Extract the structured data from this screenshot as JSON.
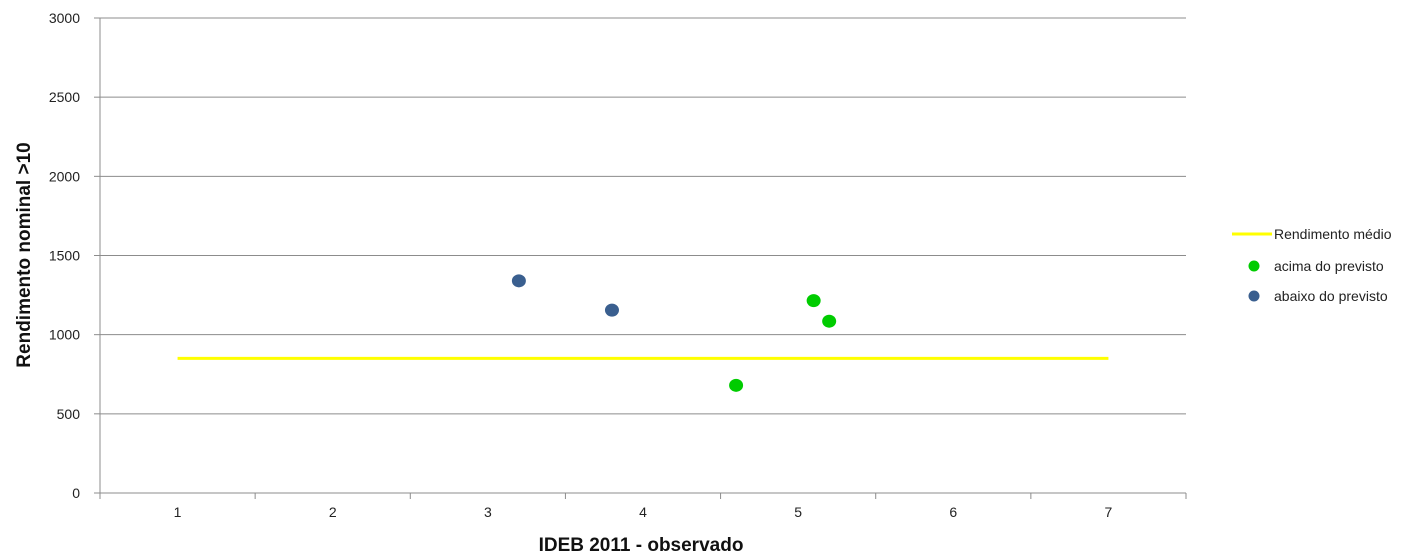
{
  "chart_data": {
    "type": "scatter",
    "title": "",
    "xlabel": "IDEB 2011 - observado",
    "ylabel": "Rendimento nominal >10",
    "xlim": [
      0.5,
      7.5
    ],
    "ylim": [
      0,
      3000
    ],
    "x_ticks": [
      "1",
      "2",
      "3",
      "4",
      "5",
      "6",
      "7"
    ],
    "y_ticks": [
      "0",
      "500",
      "1000",
      "1500",
      "2000",
      "2500",
      "3000"
    ],
    "grid": "horizontal",
    "legend_position": "right",
    "series": [
      {
        "name": "Rendimento médio",
        "kind": "line",
        "color": "#FFFF00",
        "points": [
          {
            "x": 1,
            "y": 850
          },
          {
            "x": 7,
            "y": 850
          }
        ]
      },
      {
        "name": "acima do previsto",
        "kind": "scatter",
        "color": "#00CC00",
        "points": [
          {
            "x": 4.6,
            "y": 680
          },
          {
            "x": 5.1,
            "y": 1215
          },
          {
            "x": 5.2,
            "y": 1085
          }
        ]
      },
      {
        "name": "abaixo do previsto",
        "kind": "scatter",
        "color": "#3A5F8F",
        "points": [
          {
            "x": 3.2,
            "y": 1340
          },
          {
            "x": 3.8,
            "y": 1155
          }
        ]
      }
    ]
  }
}
